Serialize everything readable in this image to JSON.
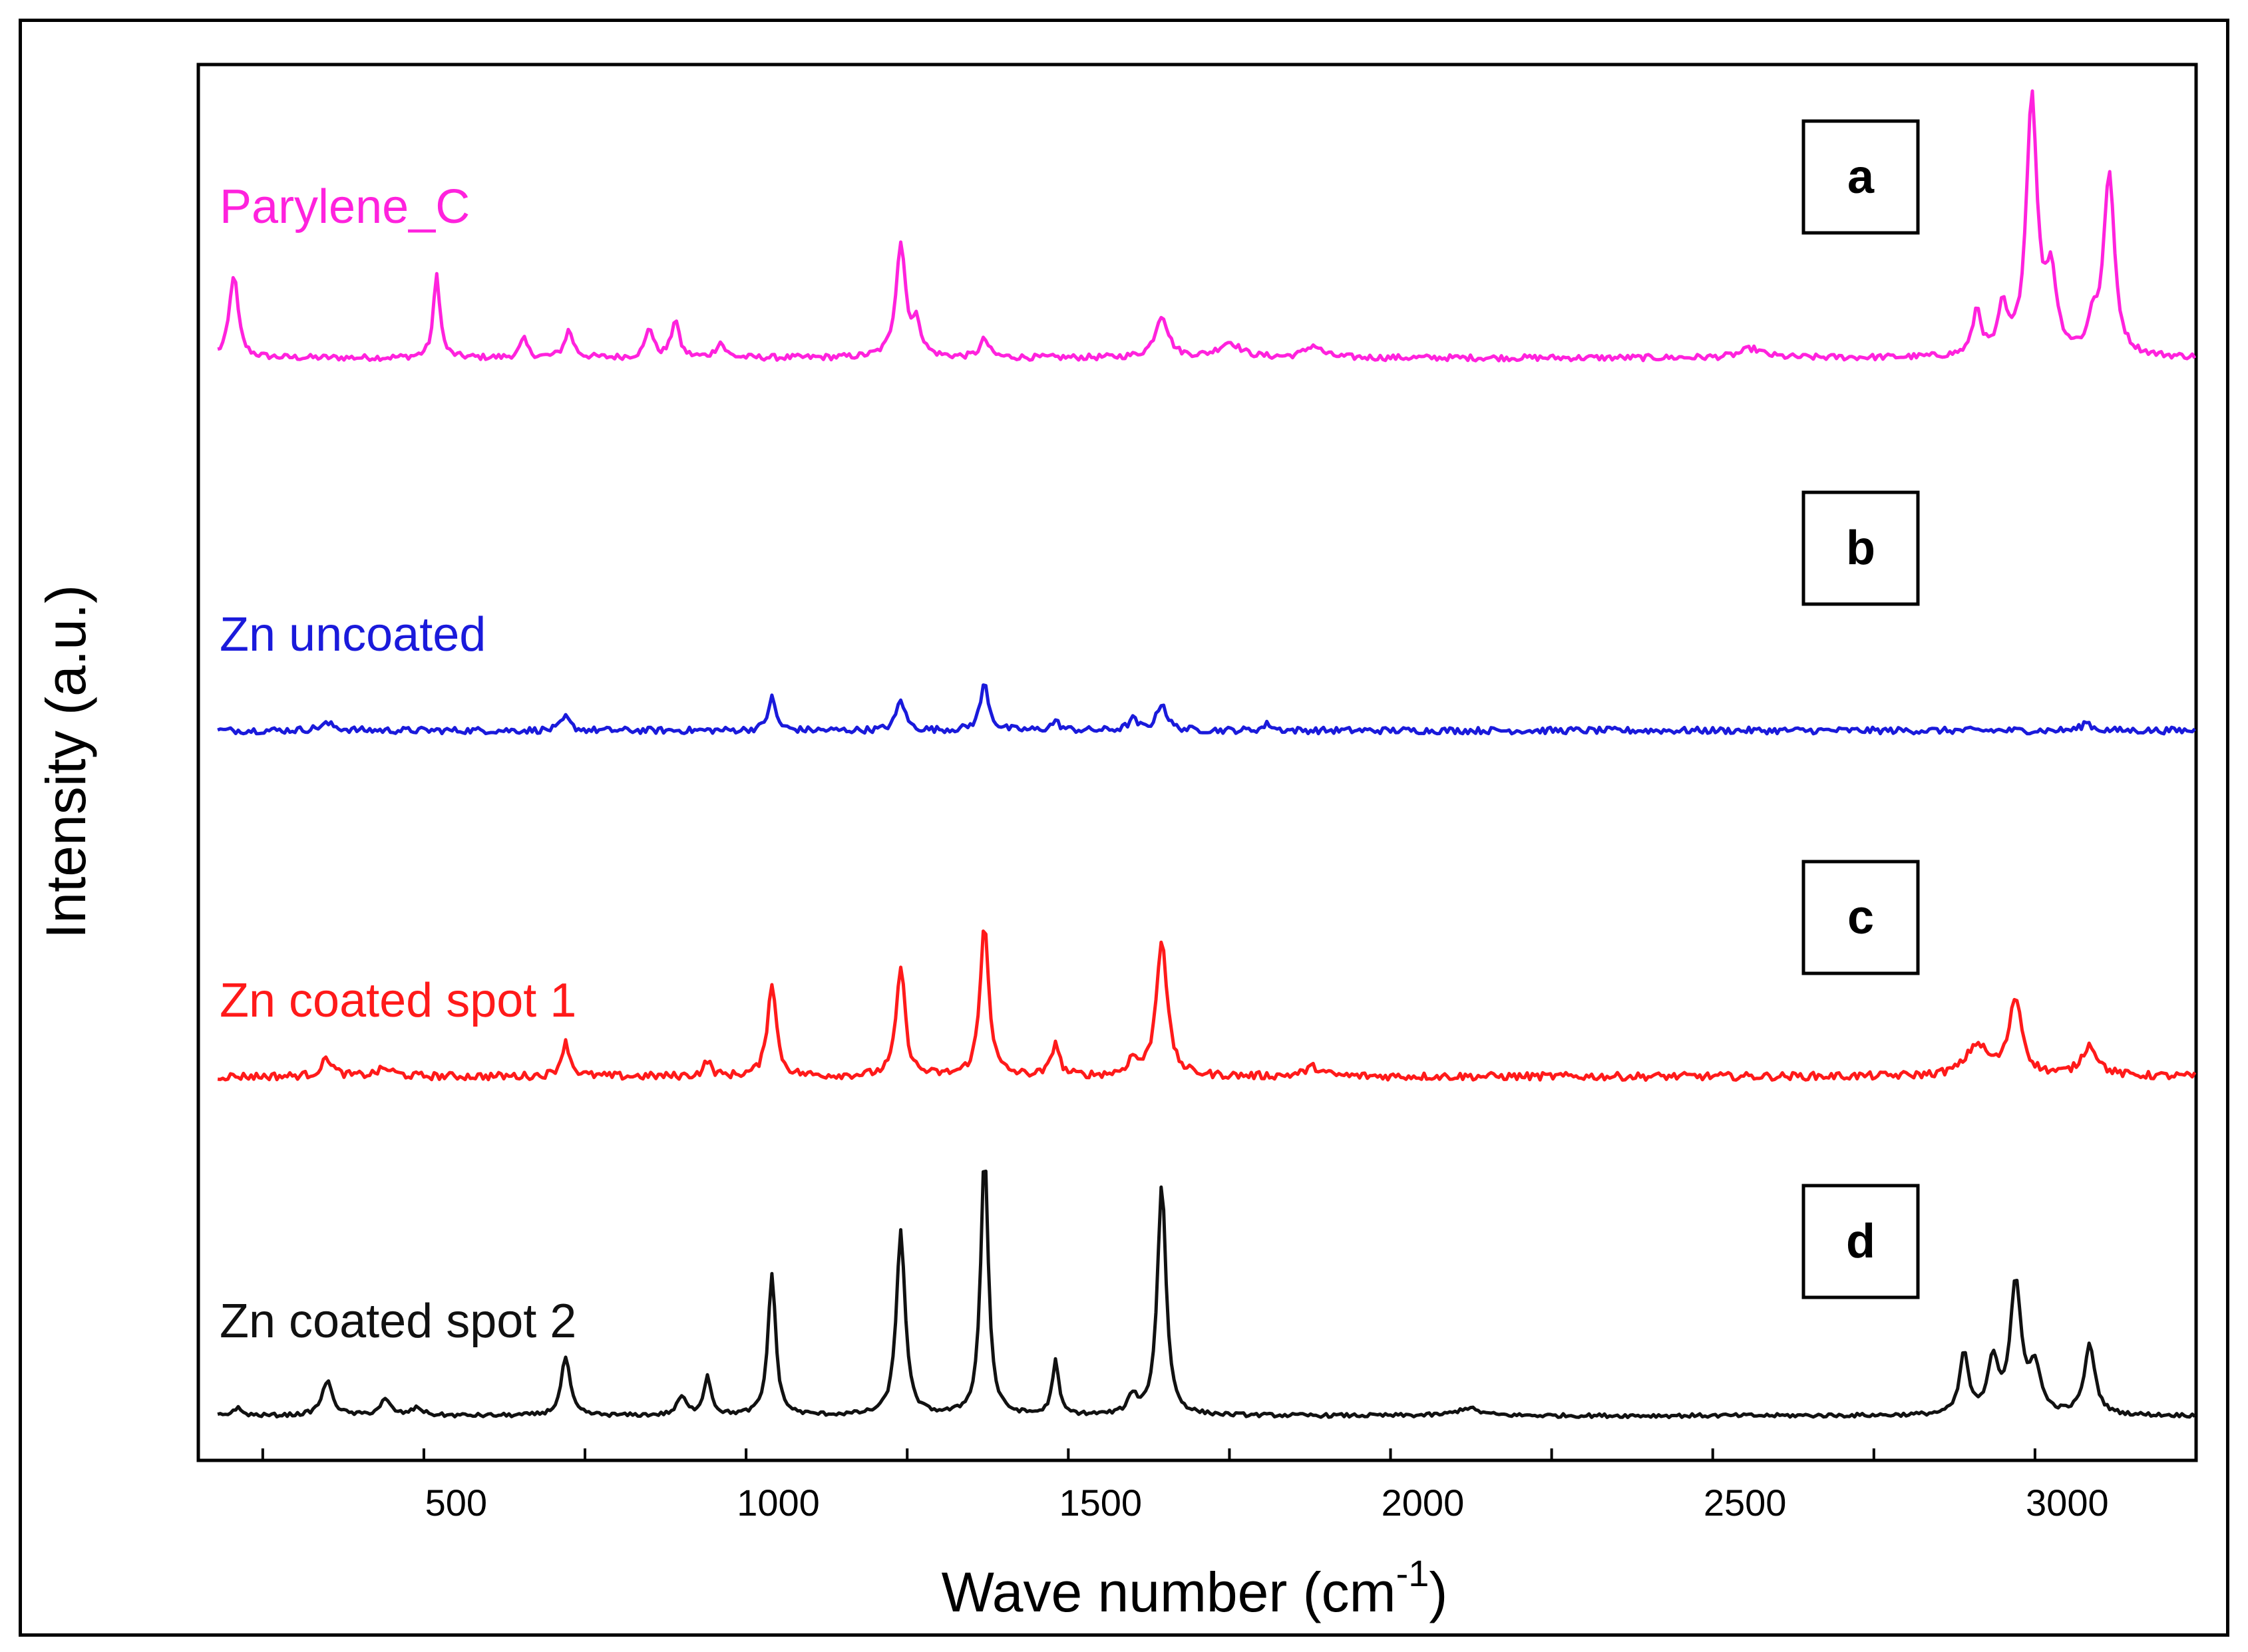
{
  "chart_data": {
    "type": "line",
    "xlabel": "Wave number (cm",
    "xlabel_superscript": "-1",
    "xlabel_suffix": ")",
    "ylabel": "Intensity (a.u.)",
    "xlim": [
      100,
      3200
    ],
    "x_ticks": [
      500,
      1000,
      1500,
      2000,
      2500,
      3000
    ],
    "x_tick_labels": [
      "500",
      "1000",
      "1500",
      "2000",
      "2500",
      "3000"
    ],
    "y_ticks": false,
    "stacked_offset": true,
    "series": [
      {
        "name": "Parylene_C",
        "panel": "a",
        "color": "#ff22dd",
        "baseline": 0.0,
        "noise": 0.02,
        "peaks": [
          [
            155,
            0.55,
            8
          ],
          [
            470,
            0.55,
            6
          ],
          [
            605,
            0.12,
            7
          ],
          [
            675,
            0.18,
            8
          ],
          [
            800,
            0.2,
            7
          ],
          [
            840,
            0.25,
            7
          ],
          [
            910,
            0.1,
            8
          ],
          [
            1190,
            0.75,
            9
          ],
          [
            1215,
            0.2,
            8
          ],
          [
            1320,
            0.12,
            8
          ],
          [
            1595,
            0.28,
            12
          ],
          [
            1700,
            0.1,
            20
          ],
          [
            1830,
            0.08,
            15
          ],
          [
            2510,
            0.06,
            20
          ],
          [
            2860,
            0.3,
            8
          ],
          [
            2900,
            0.3,
            8
          ],
          [
            2945,
            1.7,
            10
          ],
          [
            2975,
            0.5,
            10
          ],
          [
            3040,
            0.2,
            8
          ],
          [
            3065,
            1.2,
            10
          ]
        ]
      },
      {
        "name": "Zn uncoated",
        "panel": "b",
        "color": "#1a1adb",
        "baseline": 0.0,
        "noise": 0.03,
        "peaks": [
          [
            300,
            0.06,
            15
          ],
          [
            670,
            0.12,
            8
          ],
          [
            990,
            0.3,
            7
          ],
          [
            1190,
            0.28,
            8
          ],
          [
            1320,
            0.42,
            8
          ],
          [
            1430,
            0.08,
            8
          ],
          [
            1550,
            0.1,
            8
          ],
          [
            1595,
            0.25,
            9
          ],
          [
            1760,
            0.06,
            8
          ],
          [
            3030,
            0.08,
            8
          ]
        ]
      },
      {
        "name": "Zn coated spot 1",
        "panel": "c",
        "color": "#ff1a1a",
        "baseline": 0.0,
        "noise": 0.025,
        "peaks": [
          [
            300,
            0.12,
            10
          ],
          [
            390,
            0.05,
            15
          ],
          [
            670,
            0.22,
            8
          ],
          [
            890,
            0.1,
            7
          ],
          [
            990,
            0.62,
            8
          ],
          [
            1190,
            0.72,
            8
          ],
          [
            1320,
            1.0,
            8
          ],
          [
            1430,
            0.22,
            7
          ],
          [
            1550,
            0.1,
            9
          ],
          [
            1595,
            0.9,
            10
          ],
          [
            1830,
            0.06,
            15
          ],
          [
            2860,
            0.2,
            20
          ],
          [
            2920,
            0.5,
            12
          ],
          [
            3035,
            0.2,
            15
          ]
        ]
      },
      {
        "name": "Zn coated spot 2",
        "panel": "d",
        "color": "#111111",
        "baseline": 0.0,
        "noise": 0.012,
        "peaks": [
          [
            160,
            0.05,
            8
          ],
          [
            300,
            0.22,
            10
          ],
          [
            390,
            0.1,
            10
          ],
          [
            440,
            0.05,
            10
          ],
          [
            670,
            0.38,
            8
          ],
          [
            850,
            0.12,
            8
          ],
          [
            890,
            0.25,
            7
          ],
          [
            990,
            0.92,
            7
          ],
          [
            1190,
            1.2,
            8
          ],
          [
            1320,
            1.7,
            7
          ],
          [
            1430,
            0.35,
            6
          ],
          [
            1550,
            0.12,
            8
          ],
          [
            1595,
            1.5,
            8
          ],
          [
            2070,
            0.05,
            20
          ],
          [
            2840,
            0.4,
            8
          ],
          [
            2885,
            0.35,
            9
          ],
          [
            2920,
            0.85,
            10
          ],
          [
            2950,
            0.3,
            10
          ],
          [
            3035,
            0.45,
            10
          ]
        ]
      }
    ],
    "panel_labels": [
      "a",
      "b",
      "c",
      "d"
    ]
  }
}
